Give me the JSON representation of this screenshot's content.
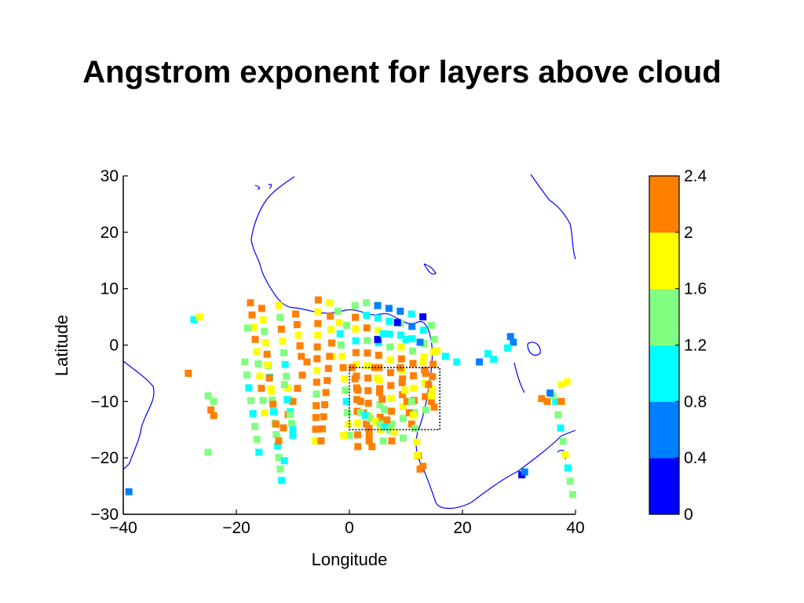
{
  "slide": {
    "title": "Angstrom exponent for layers above cloud"
  },
  "chart_data": {
    "type": "scatter",
    "title": "Angstrom exponent for layers above cloud",
    "xlabel": "Longitude",
    "ylabel": "Latitude",
    "xlim": [
      -40,
      40
    ],
    "ylim": [
      -30,
      30
    ],
    "xticks": [
      -40,
      -20,
      0,
      20,
      40
    ],
    "yticks": [
      -30,
      -20,
      -10,
      0,
      10,
      20,
      30
    ],
    "xtick_labels": [
      "−40",
      "−20",
      "0",
      "20",
      "40"
    ],
    "ytick_labels": [
      "−30",
      "−20",
      "−10",
      "0",
      "10",
      "20",
      "30"
    ],
    "grid": false,
    "colorbar": {
      "min": 0,
      "max": 2.4,
      "ticks": [
        0,
        0.4,
        0.8,
        1.2,
        1.6,
        2.0,
        2.4
      ],
      "tick_labels": [
        "0",
        "0.4",
        "0.8",
        "1.2",
        "1.6",
        "2",
        "2.4"
      ],
      "colors": [
        "#0000ff",
        "#0080ff",
        "#00ffff",
        "#80ff80",
        "#ffff00",
        "#ff8000"
      ]
    },
    "box": {
      "lon": [
        0,
        16
      ],
      "lat": [
        -15,
        -4
      ]
    },
    "coastline_color": "#0000ff",
    "tracks": [
      {
        "lon0": -15.5,
        "lat0": 6.5,
        "lon1": -12.0,
        "lat1": -24.0,
        "values": [
          2.2,
          1.8,
          1.4,
          1.8,
          2.2,
          1.4,
          1.0,
          1.8,
          1.4,
          1.0,
          1.4,
          1.4,
          1.0,
          1.4,
          1.4,
          1.0
        ]
      },
      {
        "lon0": -12.5,
        "lat0": 7.0,
        "lon1": -10.0,
        "lat1": -16.0,
        "values": [
          1.8,
          1.4,
          2.2,
          1.8,
          1.4,
          1.0,
          1.4,
          1.8,
          1.4,
          1.0,
          1.4,
          1.0
        ]
      },
      {
        "lon0": -17.5,
        "lat0": 7.5,
        "lon1": -15.0,
        "lat1": -12.0,
        "values": [
          2.2,
          2.2,
          1.8,
          2.2,
          1.8,
          1.4,
          1.8,
          2.2,
          1.4,
          1.8
        ]
      },
      {
        "lon0": -9.5,
        "lat0": 5.5,
        "lon1": -8.5,
        "lat1": -2.0,
        "values": [
          2.2,
          2.2,
          1.8,
          2.2,
          2.2
        ]
      },
      {
        "lon0": -5.5,
        "lat0": 8.0,
        "lon1": -6.0,
        "lat1": -17.0,
        "values": [
          2.2,
          1.8,
          2.2,
          1.8,
          2.2,
          2.2,
          1.8,
          2.2,
          1.4,
          2.2,
          2.2,
          2.2,
          1.8
        ]
      },
      {
        "lon0": -3.5,
        "lat0": 7.5,
        "lon1": -3.0,
        "lat1": -2.0,
        "values": [
          1.8,
          2.2,
          1.8,
          2.2,
          1.8
        ]
      },
      {
        "lon0": -2.0,
        "lat0": 6.0,
        "lon1": 0.0,
        "lat1": -16.0,
        "values": [
          1.4,
          1.8,
          1.0,
          1.4,
          1.8,
          2.2,
          1.8,
          1.4,
          1.0,
          1.4,
          1.8,
          1.4
        ]
      },
      {
        "lon0": -7.5,
        "lat0": -3.0,
        "lon1": -12.5,
        "lat1": -17.0,
        "values": [
          2.2,
          2.2,
          2.2,
          2.2,
          2.2,
          2.2,
          2.2
        ]
      },
      {
        "lon0": -3.5,
        "lat0": -2.0,
        "lon1": -5.0,
        "lat1": -17.0,
        "values": [
          2.2,
          2.2,
          2.2,
          2.2,
          2.2,
          2.2,
          2.2,
          2.2
        ]
      },
      {
        "lon0": -18.5,
        "lat0": -3.0,
        "lon1": -16.0,
        "lat1": -19.0,
        "values": [
          1.4,
          1.4,
          1.0,
          1.4,
          1.0,
          1.4,
          1.4,
          1.0
        ]
      },
      {
        "lon0": -11.5,
        "lat0": -7.0,
        "lon1": -10.0,
        "lat1": -15.0,
        "values": [
          1.4,
          1.0,
          1.4,
          1.0
        ]
      },
      {
        "lon0": -14.5,
        "lat0": -3.5,
        "lon1": -13.5,
        "lat1": -10.5,
        "values": [
          1.8,
          2.2,
          1.8,
          2.2
        ]
      },
      {
        "lon0": 1.0,
        "lat0": 7.0,
        "lon1": 1.5,
        "lat1": -18.0,
        "values": [
          1.4,
          2.2,
          1.8,
          1.0,
          2.2,
          1.8,
          2.2,
          2.2,
          2.2,
          2.2,
          1.8,
          2.2,
          2.2
        ]
      },
      {
        "lon0": 3.0,
        "lat0": 7.5,
        "lon1": 3.5,
        "lat1": -17.0,
        "values": [
          1.4,
          1.0,
          2.2,
          1.4,
          2.2,
          1.8,
          2.2,
          2.2,
          2.2,
          1.8,
          2.2,
          2.2
        ]
      },
      {
        "lon0": 5.0,
        "lat0": 7.0,
        "lon1": 5.5,
        "lat1": -15.0,
        "values": [
          0.6,
          1.0,
          1.8,
          1.0,
          2.2,
          2.2,
          1.8,
          2.2,
          1.4,
          2.2,
          1.8
        ]
      },
      {
        "lon0": 7.0,
        "lat0": 6.5,
        "lon1": 7.5,
        "lat1": -14.0,
        "values": [
          0.6,
          1.0,
          1.0,
          1.4,
          1.8,
          2.2,
          2.2,
          1.8,
          2.2,
          1.4
        ]
      },
      {
        "lon0": 9.0,
        "lat0": 6.0,
        "lon1": 9.5,
        "lat1": -13.0,
        "values": [
          0.6,
          1.4,
          1.0,
          1.8,
          2.2,
          1.8,
          2.2,
          2.2,
          1.8,
          1.4
        ]
      },
      {
        "lon0": 11.0,
        "lat0": 5.5,
        "lon1": 11.5,
        "lat1": -12.0,
        "values": [
          1.0,
          0.6,
          1.0,
          1.4,
          2.2,
          2.2,
          1.8,
          2.2,
          1.4
        ]
      },
      {
        "lon0": 13.0,
        "lat0": 5.0,
        "lon1": 13.5,
        "lat1": -11.5,
        "values": [
          0.2,
          1.0,
          1.4,
          1.8,
          2.2,
          1.8,
          2.2,
          1.4
        ]
      },
      {
        "lon0": 15.0,
        "lat0": 1.0,
        "lon1": 14.5,
        "lat1": -10.0,
        "values": [
          1.4,
          1.8,
          2.2,
          2.2,
          1.8,
          2.2
        ]
      },
      {
        "lon0": 0.5,
        "lat0": -4.0,
        "lon1": 4.0,
        "lat1": -18.0,
        "values": [
          2.2,
          2.2,
          2.2,
          2.2,
          2.2,
          2.2,
          2.2,
          2.2
        ]
      },
      {
        "lon0": 4.5,
        "lat0": -4.0,
        "lon1": 7.5,
        "lat1": -17.0,
        "values": [
          2.2,
          1.8,
          2.2,
          2.2,
          1.4,
          2.2,
          1.8,
          2.2
        ]
      },
      {
        "lon0": 9.0,
        "lat0": -4.0,
        "lon1": 11.0,
        "lat1": -14.0,
        "values": [
          2.2,
          2.2,
          1.8,
          2.2,
          2.2,
          2.2
        ]
      },
      {
        "lon0": 11.0,
        "lat0": -10.0,
        "lon1": 12.5,
        "lat1": -22.0,
        "values": [
          1.4,
          1.8,
          1.4,
          1.8,
          2.2,
          2.2
        ]
      },
      {
        "lon0": 13.0,
        "lat0": -3.0,
        "lon1": 15.0,
        "lat1": -11.0,
        "values": [
          1.8,
          2.2,
          2.2,
          1.8,
          2.2
        ]
      },
      {
        "lon0": 2.0,
        "lat0": -12.0,
        "lon1": 8.0,
        "lat1": -15.5,
        "values": [
          1.4,
          1.0,
          1.4,
          1.8,
          1.4,
          1.0,
          1.4,
          1.8
        ]
      },
      {
        "lon0": 36.5,
        "lat0": -10.0,
        "lon1": 39.5,
        "lat1": -26.5,
        "values": [
          1.0,
          1.4,
          1.0,
          1.4,
          1.8,
          1.0,
          1.4,
          1.4
        ]
      }
    ],
    "points": [
      {
        "lon": -27.5,
        "lat": 4.5,
        "value": 1.0
      },
      {
        "lon": -26.5,
        "lat": 5.0,
        "value": 1.8
      },
      {
        "lon": -28.5,
        "lat": -5.0,
        "value": 2.2
      },
      {
        "lon": -25.0,
        "lat": -9.0,
        "value": 1.4
      },
      {
        "lon": -24.0,
        "lat": -10.0,
        "value": 1.4
      },
      {
        "lon": -24.5,
        "lat": -11.5,
        "value": 2.2
      },
      {
        "lon": -24.0,
        "lat": -12.5,
        "value": 2.2
      },
      {
        "lon": -25.0,
        "lat": -19.0,
        "value": 1.4
      },
      {
        "lon": -39.0,
        "lat": -26.0,
        "value": 0.6
      },
      {
        "lon": -18.0,
        "lat": 3.0,
        "value": 1.4
      },
      {
        "lon": 5.0,
        "lat": 1.0,
        "value": 0.2
      },
      {
        "lon": 8.5,
        "lat": 4.0,
        "value": 0.2
      },
      {
        "lon": 12.5,
        "lat": 0.5,
        "value": 0.6
      },
      {
        "lon": 17.0,
        "lat": -2.0,
        "value": 1.0
      },
      {
        "lon": 19.0,
        "lat": -3.0,
        "value": 1.0
      },
      {
        "lon": 23.0,
        "lat": -3.0,
        "value": 0.6
      },
      {
        "lon": 25.5,
        "lat": -2.5,
        "value": 1.0
      },
      {
        "lon": 24.5,
        "lat": -1.5,
        "value": 1.0
      },
      {
        "lon": 28.5,
        "lat": 1.5,
        "value": 0.6
      },
      {
        "lon": 29.0,
        "lat": 0.5,
        "value": 0.6
      },
      {
        "lon": 28.0,
        "lat": -0.5,
        "value": 1.0
      },
      {
        "lon": 30.5,
        "lat": -23.0,
        "value": 0.2
      },
      {
        "lon": 31.0,
        "lat": -22.5,
        "value": 0.6
      },
      {
        "lon": 34.0,
        "lat": -9.5,
        "value": 2.2
      },
      {
        "lon": 35.0,
        "lat": -10.0,
        "value": 2.2
      },
      {
        "lon": 36.0,
        "lat": -9.0,
        "value": 1.4
      },
      {
        "lon": 37.5,
        "lat": -7.0,
        "value": 1.8
      },
      {
        "lon": 38.5,
        "lat": -6.5,
        "value": 1.8
      },
      {
        "lon": 37.5,
        "lat": -10.0,
        "value": 2.2
      },
      {
        "lon": 35.5,
        "lat": -8.5,
        "value": 0.6
      },
      {
        "lon": -13.0,
        "lat": -14.0,
        "value": 2.2
      },
      {
        "lon": -11.5,
        "lat": -20.5,
        "value": 1.0
      },
      {
        "lon": -0.5,
        "lat": 3.5,
        "value": 1.4
      },
      {
        "lon": 6.0,
        "lat": 2.0,
        "value": 1.0
      },
      {
        "lon": 10.0,
        "lat": 1.0,
        "value": 1.0
      },
      {
        "lon": 14.5,
        "lat": 3.5,
        "value": 1.4
      },
      {
        "lon": 15.5,
        "lat": -1.0,
        "value": 1.8
      },
      {
        "lon": 13.0,
        "lat": -21.5,
        "value": 2.2
      },
      {
        "lon": 12.0,
        "lat": -19.5,
        "value": 1.8
      },
      {
        "lon": 6.0,
        "lat": -17.0,
        "value": 1.4
      },
      {
        "lon": 9.5,
        "lat": -16.5,
        "value": 1.4
      },
      {
        "lon": -1.0,
        "lat": -16.0,
        "value": 1.8
      }
    ]
  }
}
